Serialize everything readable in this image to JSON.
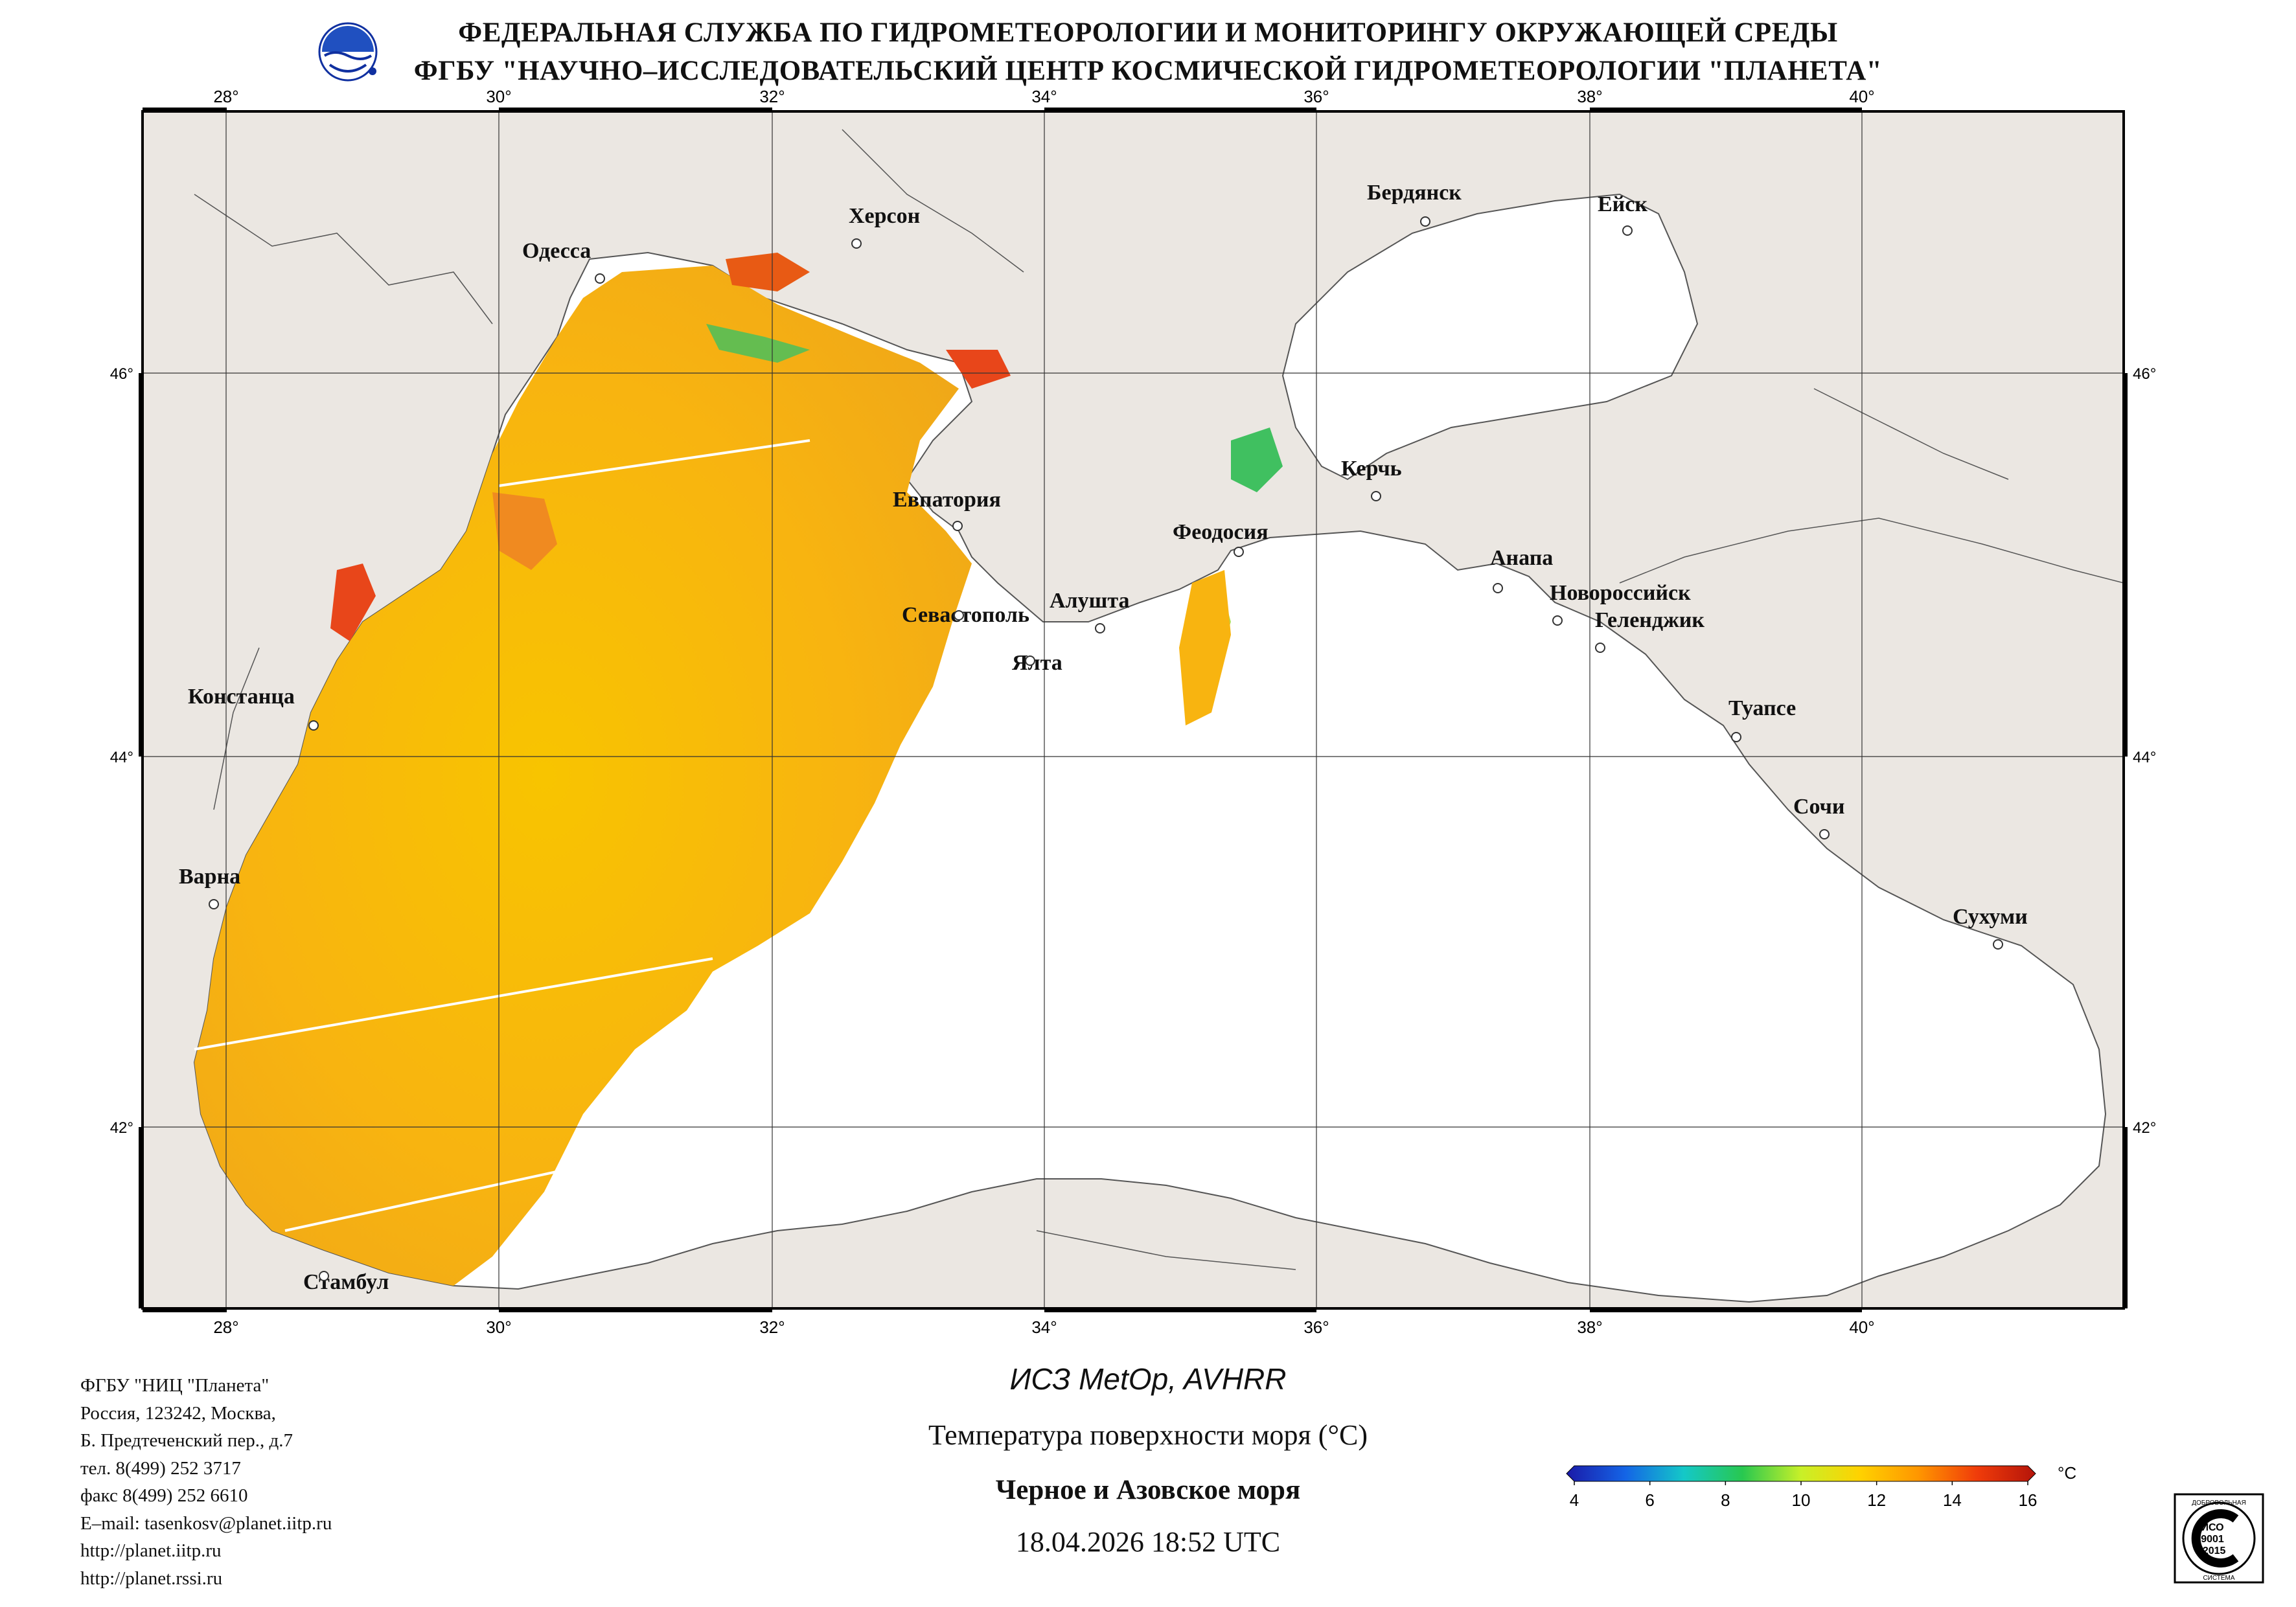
{
  "header": {
    "line1": "ФЕДЕРАЛЬНАЯ СЛУЖБА ПО ГИДРОМЕТЕОРОЛОГИИ И МОНИТОРИНГУ ОКРУЖАЮЩЕЙ СРЕДЫ",
    "line2": "ФГБУ \"НАУЧНО–ИССЛЕДОВАТЕЛЬСКИЙ ЦЕНТР КОСМИЧЕСКОЙ ГИДРОМЕТЕОРОЛОГИИ \"ПЛАНЕТА\""
  },
  "map": {
    "lon_labels": [
      "28°",
      "30°",
      "32°",
      "34°",
      "36°",
      "38°",
      "40°"
    ],
    "lat_labels": [
      "46°",
      "44°",
      "42°"
    ],
    "colors": {
      "land": "#ebe7e2",
      "water_nodata": "#ffffff",
      "border": "#000000"
    },
    "cities": [
      {
        "name": "Одесса"
      },
      {
        "name": "Херсон"
      },
      {
        "name": "Бердянск"
      },
      {
        "name": "Ейск"
      },
      {
        "name": "Керчь"
      },
      {
        "name": "Евпатория"
      },
      {
        "name": "Феодосия"
      },
      {
        "name": "Анапа"
      },
      {
        "name": "Новороссийск"
      },
      {
        "name": "Геленджик"
      },
      {
        "name": "Алушта"
      },
      {
        "name": "Севастополь"
      },
      {
        "name": "Ялта"
      },
      {
        "name": "Констанца"
      },
      {
        "name": "Туапсе"
      },
      {
        "name": "Сочи"
      },
      {
        "name": "Варна"
      },
      {
        "name": "Сухуми"
      },
      {
        "name": "Стамбул"
      }
    ]
  },
  "info": {
    "lines": [
      "ФГБУ \"НИЦ \"Планета\"",
      "Россия, 123242, Москва,",
      "Б. Предтеченский пер., д.7",
      "тел. 8(499) 252 3717",
      "факс 8(499) 252 6610",
      "E–mail: tasenkosv@planet.iitp.ru",
      "http://planet.iitp.ru",
      "http://planet.rssi.ru"
    ]
  },
  "product": {
    "satellite": "ИСЗ MetOp, AVHRR",
    "parameter": "Температура поверхности моря (°C)",
    "region": "Черное и Азовское моря",
    "datetime": "18.04.2026 18:52 UTC"
  },
  "colorbar": {
    "ticks": [
      "4",
      "6",
      "8",
      "10",
      "12",
      "14",
      "16"
    ],
    "unit": "°C",
    "colors": [
      "#1a1aa8",
      "#1464e6",
      "#14c8c8",
      "#28c850",
      "#c8f028",
      "#ffd200",
      "#ff9600",
      "#f03c0a",
      "#b4140a"
    ]
  },
  "iso_badge": {
    "top_text": "ДОБРОВОЛЬНАЯ",
    "lines": [
      "ИСО",
      "9001",
      "-2015"
    ],
    "bottom_text": "СИСТЕМА"
  }
}
